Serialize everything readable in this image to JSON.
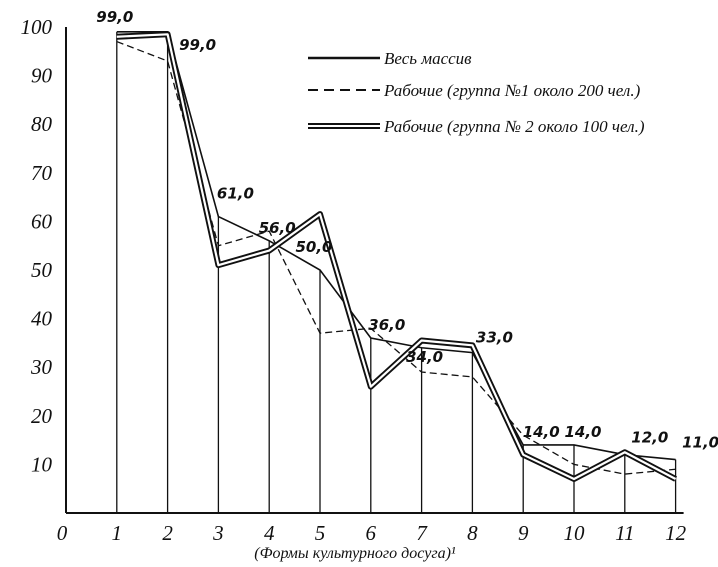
{
  "chart_data": {
    "type": "line",
    "title": "",
    "xlabel": "(Формы культурного досуга)¹",
    "ylabel": "",
    "x": [
      1,
      2,
      3,
      4,
      5,
      6,
      7,
      8,
      9,
      10,
      11,
      12
    ],
    "x_ticks": [
      "0",
      "1",
      "2",
      "3",
      "4",
      "5",
      "6",
      "7",
      "8",
      "9",
      "10",
      "11",
      "12"
    ],
    "y_ticks": [
      "100",
      "90",
      "80",
      "70",
      "60",
      "50",
      "40",
      "30",
      "20",
      "10"
    ],
    "xlim": [
      0,
      12
    ],
    "ylim": [
      0,
      100
    ],
    "grid": false,
    "legend_position": "top-right",
    "bars": [
      99,
      99,
      61,
      56,
      50,
      36,
      34,
      33,
      14,
      14,
      12,
      11
    ],
    "data_labels": [
      "99,0",
      "99,0",
      "61,0",
      "56,0",
      "50,0",
      "36,0",
      "34,0",
      "33,0",
      "14,0",
      "14,0",
      "12,0",
      "11,0"
    ],
    "series": [
      {
        "name": "Весь массив",
        "style": "solid",
        "values": [
          99,
          99,
          61,
          56,
          50,
          36,
          34,
          33,
          14,
          14,
          12,
          11
        ]
      },
      {
        "name": "Рабочие (группа №1 около 200 чел.)",
        "style": "dashed",
        "values": [
          97,
          93,
          55,
          58,
          37,
          38,
          29,
          28,
          16,
          10,
          8,
          9
        ]
      },
      {
        "name": "Рабочие (группа № 2 около 100 чел.)",
        "style": "double",
        "values": [
          98,
          98.5,
          51,
          54,
          61.5,
          26,
          35.5,
          34.5,
          12,
          7,
          12.5,
          7
        ]
      }
    ]
  }
}
